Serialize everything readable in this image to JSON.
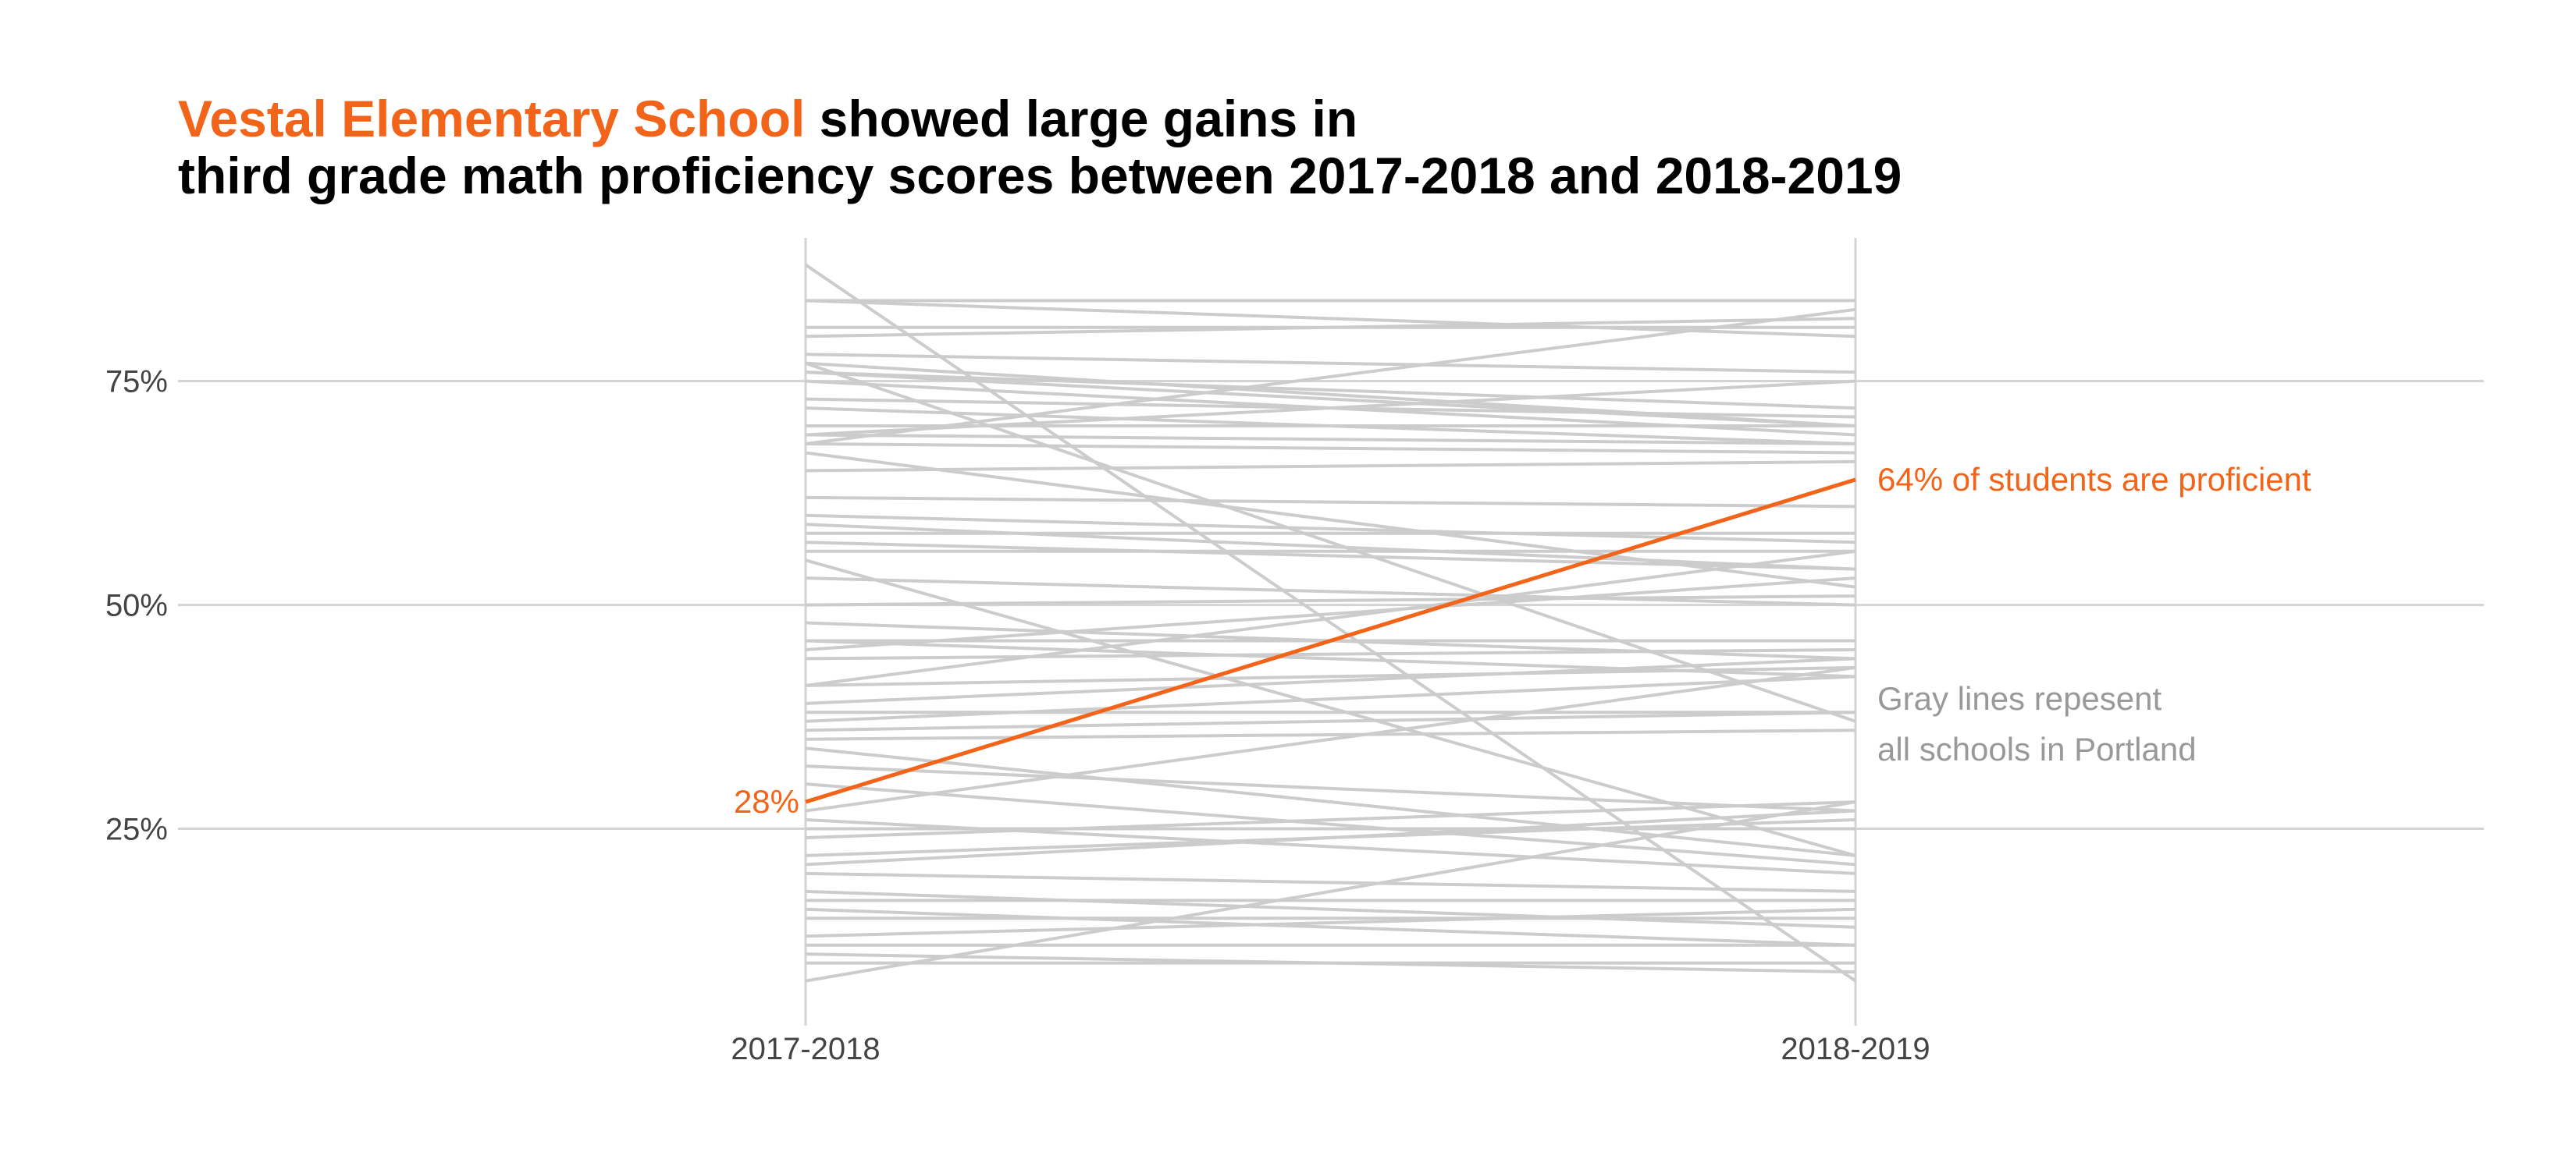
{
  "title": {
    "highlight": "Vestal Elementary School",
    "rest_line1": " showed large gains in",
    "line2": "third grade math proficiency scores between 2017-2018 and 2018-2019"
  },
  "colors": {
    "highlight": "#F26419",
    "gray_line": "#CCCCCC",
    "grid": "#D3D3D3",
    "axis_text": "#444444",
    "note_text": "#999999"
  },
  "chart_data": {
    "type": "line",
    "x": [
      "2017-2018",
      "2018-2019"
    ],
    "ylim": [
      3,
      91
    ],
    "y_ticks": [
      25,
      50,
      75
    ],
    "y_tick_labels": [
      "25%",
      "50%",
      "75%"
    ],
    "grid": "horizontal major gridlines; vertical lines at both x positions",
    "highlight_series": {
      "values": [
        28,
        64
      ]
    },
    "background_series": [
      [
        88,
        8
      ],
      [
        84,
        84
      ],
      [
        84,
        80
      ],
      [
        81,
        81
      ],
      [
        80,
        82
      ],
      [
        78,
        76
      ],
      [
        77,
        70
      ],
      [
        77,
        37
      ],
      [
        76,
        72
      ],
      [
        76,
        70
      ],
      [
        75,
        69
      ],
      [
        73,
        71
      ],
      [
        72,
        68
      ],
      [
        70,
        70
      ],
      [
        69,
        75
      ],
      [
        69,
        68
      ],
      [
        68,
        67
      ],
      [
        68,
        83
      ],
      [
        67,
        52
      ],
      [
        65,
        66
      ],
      [
        62,
        61
      ],
      [
        60,
        57
      ],
      [
        59,
        54
      ],
      [
        58,
        58
      ],
      [
        57,
        54
      ],
      [
        56,
        56
      ],
      [
        55,
        22
      ],
      [
        53,
        50
      ],
      [
        50,
        51
      ],
      [
        48,
        44
      ],
      [
        46,
        46
      ],
      [
        46,
        42
      ],
      [
        45,
        53
      ],
      [
        44,
        45
      ],
      [
        41,
        43
      ],
      [
        41,
        56
      ],
      [
        39,
        44
      ],
      [
        38,
        38
      ],
      [
        37,
        42
      ],
      [
        36,
        38
      ],
      [
        35,
        36
      ],
      [
        34,
        22
      ],
      [
        32,
        27
      ],
      [
        30,
        21
      ],
      [
        27,
        43
      ],
      [
        26,
        20
      ],
      [
        25,
        25
      ],
      [
        24,
        28
      ],
      [
        22,
        26
      ],
      [
        21,
        27
      ],
      [
        20,
        18
      ],
      [
        18,
        14
      ],
      [
        17,
        17
      ],
      [
        16,
        12
      ],
      [
        15,
        15
      ],
      [
        13,
        16
      ],
      [
        12,
        12
      ],
      [
        11,
        9
      ],
      [
        10,
        10
      ],
      [
        8,
        28
      ]
    ],
    "annotations": {
      "start_label": "28%",
      "end_label": "64% of students are proficient",
      "note_line1": "Gray lines repesent",
      "note_line2": "all schools in Portland"
    }
  }
}
